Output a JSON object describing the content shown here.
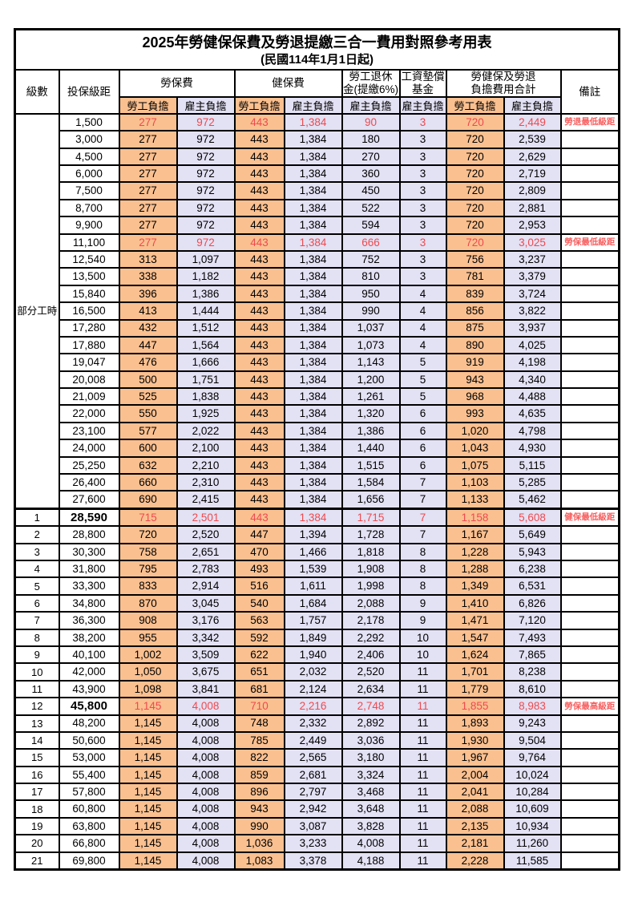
{
  "title": "2025年勞健保保費及勞退提繳三合一費用對照參考用表",
  "subtitle": "(民國114年1月1日起)",
  "colors": {
    "employee_bg": "#FAC090",
    "employer_bg": "#E3E1F4",
    "highlight_text": "#EE4A4E",
    "remark_text": "#F85F5F"
  },
  "header": {
    "level": "級數",
    "bracket": "投保級距",
    "remark": "備註",
    "groups": [
      {
        "label": "勞保費",
        "subs": [
          "勞工負擔",
          "雇主負擔"
        ]
      },
      {
        "label": "健保費",
        "subs": [
          "勞工負擔",
          "雇主負擔"
        ]
      },
      {
        "label_line1": "勞工退休",
        "label_line2": "金(提繳6%)",
        "subs": [
          "雇主負擔"
        ]
      },
      {
        "label_line1": "工資墊償",
        "label_line2": "基金",
        "subs": [
          "雇主負擔"
        ]
      },
      {
        "label_line1": "勞健保及勞退",
        "label_line2": "負擔費用合計",
        "subs": [
          "勞工負擔",
          "雇主負擔"
        ]
      }
    ]
  },
  "part_time_label": "部分工時",
  "part_time_rowspan": 23,
  "row_fields": [
    "level",
    "bracket",
    "labor_employee",
    "labor_employer",
    "health_employee",
    "health_employer",
    "pension_employer",
    "wage_fund_employer",
    "total_employee",
    "total_employer",
    "remark",
    "flags"
  ],
  "rows": [
    [
      "",
      "1,500",
      "277",
      "972",
      "443",
      "1,384",
      "90",
      "3",
      "720",
      "2,449",
      "勞退最低級距",
      "r"
    ],
    [
      "",
      "3,000",
      "277",
      "972",
      "443",
      "1,384",
      "180",
      "3",
      "720",
      "2,539",
      "",
      ""
    ],
    [
      "",
      "4,500",
      "277",
      "972",
      "443",
      "1,384",
      "270",
      "3",
      "720",
      "2,629",
      "",
      ""
    ],
    [
      "",
      "6,000",
      "277",
      "972",
      "443",
      "1,384",
      "360",
      "3",
      "720",
      "2,719",
      "",
      ""
    ],
    [
      "",
      "7,500",
      "277",
      "972",
      "443",
      "1,384",
      "450",
      "3",
      "720",
      "2,809",
      "",
      ""
    ],
    [
      "",
      "8,700",
      "277",
      "972",
      "443",
      "1,384",
      "522",
      "3",
      "720",
      "2,881",
      "",
      ""
    ],
    [
      "",
      "9,900",
      "277",
      "972",
      "443",
      "1,384",
      "594",
      "3",
      "720",
      "2,953",
      "",
      ""
    ],
    [
      "",
      "11,100",
      "277",
      "972",
      "443",
      "1,384",
      "666",
      "3",
      "720",
      "3,025",
      "勞保最低級距",
      "r"
    ],
    [
      "",
      "12,540",
      "313",
      "1,097",
      "443",
      "1,384",
      "752",
      "3",
      "756",
      "3,237",
      "",
      ""
    ],
    [
      "",
      "13,500",
      "338",
      "1,182",
      "443",
      "1,384",
      "810",
      "3",
      "781",
      "3,379",
      "",
      ""
    ],
    [
      "",
      "15,840",
      "396",
      "1,386",
      "443",
      "1,384",
      "950",
      "4",
      "839",
      "3,724",
      "",
      ""
    ],
    [
      "",
      "16,500",
      "413",
      "1,444",
      "443",
      "1,384",
      "990",
      "4",
      "856",
      "3,822",
      "",
      ""
    ],
    [
      "",
      "17,280",
      "432",
      "1,512",
      "443",
      "1,384",
      "1,037",
      "4",
      "875",
      "3,937",
      "",
      ""
    ],
    [
      "",
      "17,880",
      "447",
      "1,564",
      "443",
      "1,384",
      "1,073",
      "4",
      "890",
      "4,025",
      "",
      ""
    ],
    [
      "",
      "19,047",
      "476",
      "1,666",
      "443",
      "1,384",
      "1,143",
      "5",
      "919",
      "4,198",
      "",
      ""
    ],
    [
      "",
      "20,008",
      "500",
      "1,751",
      "443",
      "1,384",
      "1,200",
      "5",
      "943",
      "4,340",
      "",
      ""
    ],
    [
      "",
      "21,009",
      "525",
      "1,838",
      "443",
      "1,384",
      "1,261",
      "5",
      "968",
      "4,488",
      "",
      ""
    ],
    [
      "",
      "22,000",
      "550",
      "1,925",
      "443",
      "1,384",
      "1,320",
      "6",
      "993",
      "4,635",
      "",
      ""
    ],
    [
      "",
      "23,100",
      "577",
      "2,022",
      "443",
      "1,384",
      "1,386",
      "6",
      "1,020",
      "4,798",
      "",
      ""
    ],
    [
      "",
      "24,000",
      "600",
      "2,100",
      "443",
      "1,384",
      "1,440",
      "6",
      "1,043",
      "4,930",
      "",
      ""
    ],
    [
      "",
      "25,250",
      "632",
      "2,210",
      "443",
      "1,384",
      "1,515",
      "6",
      "1,075",
      "5,115",
      "",
      ""
    ],
    [
      "",
      "26,400",
      "660",
      "2,310",
      "443",
      "1,384",
      "1,584",
      "7",
      "1,103",
      "5,285",
      "",
      ""
    ],
    [
      "",
      "27,600",
      "690",
      "2,415",
      "443",
      "1,384",
      "1,656",
      "7",
      "1,133",
      "5,462",
      "",
      ""
    ],
    [
      "1",
      "28,590",
      "715",
      "2,501",
      "443",
      "1,384",
      "1,715",
      "7",
      "1,158",
      "5,608",
      "健保最低級距",
      "rbt"
    ],
    [
      "2",
      "28,800",
      "720",
      "2,520",
      "447",
      "1,394",
      "1,728",
      "7",
      "1,167",
      "5,649",
      "",
      ""
    ],
    [
      "3",
      "30,300",
      "758",
      "2,651",
      "470",
      "1,466",
      "1,818",
      "8",
      "1,228",
      "5,943",
      "",
      ""
    ],
    [
      "4",
      "31,800",
      "795",
      "2,783",
      "493",
      "1,539",
      "1,908",
      "8",
      "1,288",
      "6,238",
      "",
      ""
    ],
    [
      "5",
      "33,300",
      "833",
      "2,914",
      "516",
      "1,611",
      "1,998",
      "8",
      "1,349",
      "6,531",
      "",
      ""
    ],
    [
      "6",
      "34,800",
      "870",
      "3,045",
      "540",
      "1,684",
      "2,088",
      "9",
      "1,410",
      "6,826",
      "",
      ""
    ],
    [
      "7",
      "36,300",
      "908",
      "3,176",
      "563",
      "1,757",
      "2,178",
      "9",
      "1,471",
      "7,120",
      "",
      ""
    ],
    [
      "8",
      "38,200",
      "955",
      "3,342",
      "592",
      "1,849",
      "2,292",
      "10",
      "1,547",
      "7,493",
      "",
      ""
    ],
    [
      "9",
      "40,100",
      "1,002",
      "3,509",
      "622",
      "1,940",
      "2,406",
      "10",
      "1,624",
      "7,865",
      "",
      ""
    ],
    [
      "10",
      "42,000",
      "1,050",
      "3,675",
      "651",
      "2,032",
      "2,520",
      "11",
      "1,701",
      "8,238",
      "",
      ""
    ],
    [
      "11",
      "43,900",
      "1,098",
      "3,841",
      "681",
      "2,124",
      "2,634",
      "11",
      "1,779",
      "8,610",
      "",
      ""
    ],
    [
      "12",
      "45,800",
      "1,145",
      "4,008",
      "710",
      "2,216",
      "2,748",
      "11",
      "1,855",
      "8,983",
      "勞保最高級距",
      "rb"
    ],
    [
      "13",
      "48,200",
      "1,145",
      "4,008",
      "748",
      "2,332",
      "2,892",
      "11",
      "1,893",
      "9,243",
      "",
      ""
    ],
    [
      "14",
      "50,600",
      "1,145",
      "4,008",
      "785",
      "2,449",
      "3,036",
      "11",
      "1,930",
      "9,504",
      "",
      ""
    ],
    [
      "15",
      "53,000",
      "1,145",
      "4,008",
      "822",
      "2,565",
      "3,180",
      "11",
      "1,967",
      "9,764",
      "",
      ""
    ],
    [
      "16",
      "55,400",
      "1,145",
      "4,008",
      "859",
      "2,681",
      "3,324",
      "11",
      "2,004",
      "10,024",
      "",
      ""
    ],
    [
      "17",
      "57,800",
      "1,145",
      "4,008",
      "896",
      "2,797",
      "3,468",
      "11",
      "2,041",
      "10,284",
      "",
      ""
    ],
    [
      "18",
      "60,800",
      "1,145",
      "4,008",
      "943",
      "2,942",
      "3,648",
      "11",
      "2,088",
      "10,609",
      "",
      ""
    ],
    [
      "19",
      "63,800",
      "1,145",
      "4,008",
      "990",
      "3,087",
      "3,828",
      "11",
      "2,135",
      "10,934",
      "",
      ""
    ],
    [
      "20",
      "66,800",
      "1,145",
      "4,008",
      "1,036",
      "3,233",
      "4,008",
      "11",
      "2,181",
      "11,260",
      "",
      ""
    ],
    [
      "21",
      "69,800",
      "1,145",
      "4,008",
      "1,083",
      "3,378",
      "4,188",
      "11",
      "2,228",
      "11,585",
      "",
      ""
    ]
  ]
}
